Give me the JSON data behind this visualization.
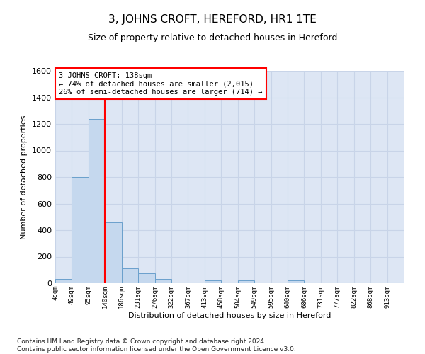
{
  "title": "3, JOHNS CROFT, HEREFORD, HR1 1TE",
  "subtitle": "Size of property relative to detached houses in Hereford",
  "xlabel": "Distribution of detached houses by size in Hereford",
  "ylabel": "Number of detached properties",
  "bin_labels": [
    "4sqm",
    "49sqm",
    "95sqm",
    "140sqm",
    "186sqm",
    "231sqm",
    "276sqm",
    "322sqm",
    "367sqm",
    "413sqm",
    "458sqm",
    "504sqm",
    "549sqm",
    "595sqm",
    "640sqm",
    "686sqm",
    "731sqm",
    "777sqm",
    "822sqm",
    "868sqm",
    "913sqm"
  ],
  "bar_heights": [
    30,
    800,
    1240,
    460,
    110,
    75,
    30,
    0,
    0,
    20,
    0,
    20,
    0,
    0,
    20,
    0,
    0,
    0,
    0,
    0,
    0
  ],
  "bar_color": "#c5d8ee",
  "bar_edge_color": "#6aa0cc",
  "property_line_x": 3,
  "annotation_text": "3 JOHNS CROFT: 138sqm\n← 74% of detached houses are smaller (2,015)\n26% of semi-detached houses are larger (714) →",
  "annotation_box_color": "white",
  "annotation_box_edge": "red",
  "ylim": [
    0,
    1600
  ],
  "yticks": [
    0,
    200,
    400,
    600,
    800,
    1000,
    1200,
    1400,
    1600
  ],
  "grid_color": "#c8d4e8",
  "bg_color": "#dde6f4",
  "footer": "Contains HM Land Registry data © Crown copyright and database right 2024.\nContains public sector information licensed under the Open Government Licence v3.0.",
  "title_fontsize": 11,
  "subtitle_fontsize": 9,
  "annotation_fontsize": 7.5,
  "footer_fontsize": 6.5,
  "ylabel_fontsize": 8,
  "xlabel_fontsize": 8
}
